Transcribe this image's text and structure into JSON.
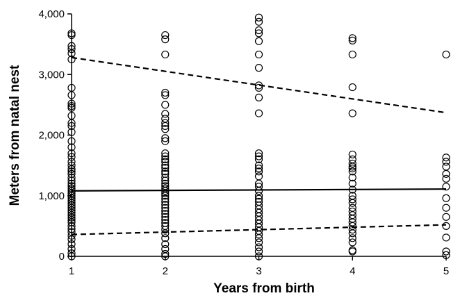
{
  "chart_data": {
    "type": "scatter",
    "xlabel": "Years from birth",
    "ylabel": "Meters from natal nest",
    "x_ticks": [
      1,
      2,
      3,
      4,
      5
    ],
    "x_tick_labels": [
      "1",
      "2",
      "3",
      "4",
      "5"
    ],
    "y_ticks": [
      0,
      1000,
      2000,
      3000,
      4000
    ],
    "y_tick_labels": [
      "0",
      "1,000",
      "2,000",
      "3,000",
      "4,000"
    ],
    "xlim": [
      1,
      5
    ],
    "ylim": [
      0,
      4000
    ],
    "grid": false,
    "legend": "none",
    "points": {
      "1": [
        3680,
        3650,
        3470,
        3420,
        3350,
        3250,
        2780,
        2660,
        2520,
        2480,
        2450,
        2320,
        2200,
        2150,
        2050,
        1900,
        1800,
        1700,
        1640,
        1560,
        1500,
        1440,
        1400,
        1360,
        1300,
        1250,
        1200,
        1160,
        1120,
        1080,
        1040,
        1000,
        960,
        920,
        880,
        840,
        800,
        760,
        720,
        680,
        640,
        600,
        560,
        500,
        450,
        400,
        340,
        280,
        200,
        120,
        50,
        0
      ],
      "2": [
        3650,
        3580,
        3330,
        2700,
        2660,
        2500,
        2350,
        2270,
        2200,
        2150,
        2100,
        1950,
        1900,
        1700,
        1650,
        1600,
        1560,
        1500,
        1460,
        1400,
        1360,
        1300,
        1250,
        1200,
        1160,
        1120,
        1080,
        1040,
        1000,
        950,
        900,
        850,
        800,
        750,
        700,
        650,
        600,
        550,
        500,
        440,
        380,
        300,
        200,
        120,
        40,
        0
      ],
      "3": [
        3940,
        3870,
        3730,
        3680,
        3550,
        3330,
        3110,
        2820,
        2780,
        2620,
        2360,
        1700,
        1650,
        1600,
        1500,
        1450,
        1400,
        1320,
        1200,
        1150,
        1080,
        1000,
        950,
        900,
        840,
        780,
        720,
        660,
        600,
        540,
        480,
        420,
        360,
        300,
        230,
        150,
        80,
        0
      ],
      "4": [
        3600,
        3560,
        3330,
        2790,
        2360,
        1680,
        1600,
        1530,
        1480,
        1450,
        1400,
        1300,
        1200,
        1100,
        1000,
        940,
        880,
        800,
        740,
        680,
        620,
        560,
        500,
        440,
        380,
        300,
        230,
        100,
        80
      ],
      "5": [
        3330,
        1630,
        1560,
        1480,
        1360,
        1280,
        1150,
        960,
        800,
        650,
        500,
        310,
        80,
        20
      ]
    },
    "trend_lines": [
      {
        "style": "dashed",
        "x": [
          1,
          5
        ],
        "y": [
          3280,
          2370
        ]
      },
      {
        "style": "solid",
        "x": [
          1,
          5
        ],
        "y": [
          1080,
          1110
        ]
      },
      {
        "style": "dashed",
        "x": [
          1,
          5
        ],
        "y": [
          360,
          520
        ]
      }
    ]
  }
}
